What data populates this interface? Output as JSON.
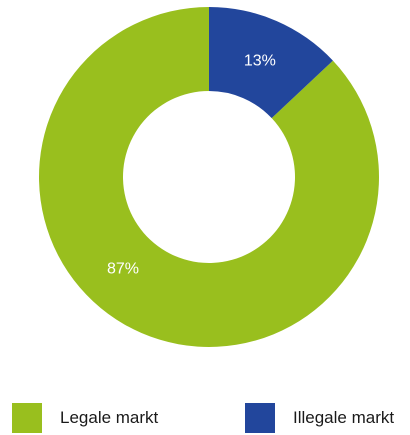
{
  "chart_data": {
    "type": "pie",
    "donut": true,
    "categories": [
      "Legale markt",
      "Illegale markt"
    ],
    "values": [
      87,
      13
    ],
    "data_labels": [
      "87%",
      "13%"
    ],
    "colors": [
      "#99BF1E",
      "#22469C"
    ],
    "legend_placement": "bottom"
  },
  "legend": {
    "items": [
      {
        "label": "Legale markt",
        "color": "#99BF1E"
      },
      {
        "label": "Illegale markt",
        "color": "#22469C"
      }
    ]
  }
}
